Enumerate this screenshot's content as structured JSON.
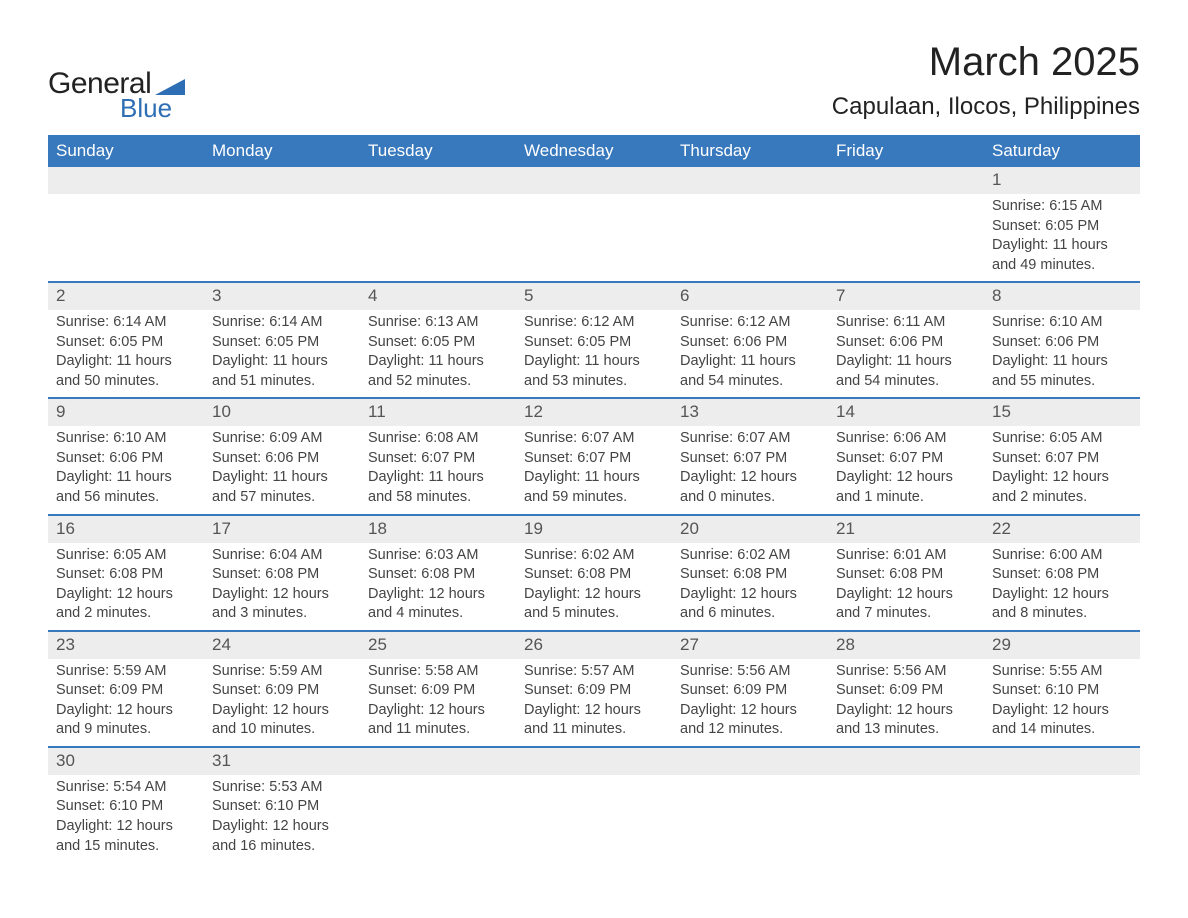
{
  "logo": {
    "text1": "General",
    "text2": "Blue",
    "flag_color": "#2e6eb5"
  },
  "title": "March 2025",
  "location": "Capulaan, Ilocos, Philippines",
  "colors": {
    "header_bg": "#3878bd",
    "header_text": "#ffffff",
    "daynum_bg": "#ededed",
    "row_border": "#3878bd",
    "body_text": "#444444",
    "page_bg": "#ffffff"
  },
  "typography": {
    "month_title_pt": 40,
    "location_pt": 24,
    "weekday_pt": 17,
    "daynum_pt": 17,
    "body_pt": 14.5
  },
  "layout": {
    "columns": 7,
    "rows": 6,
    "first_day_column": 6
  },
  "weekdays": [
    "Sunday",
    "Monday",
    "Tuesday",
    "Wednesday",
    "Thursday",
    "Friday",
    "Saturday"
  ],
  "days": [
    {
      "n": 1,
      "sunrise": "6:15 AM",
      "sunset": "6:05 PM",
      "daylight": "11 hours and 49 minutes."
    },
    {
      "n": 2,
      "sunrise": "6:14 AM",
      "sunset": "6:05 PM",
      "daylight": "11 hours and 50 minutes."
    },
    {
      "n": 3,
      "sunrise": "6:14 AM",
      "sunset": "6:05 PM",
      "daylight": "11 hours and 51 minutes."
    },
    {
      "n": 4,
      "sunrise": "6:13 AM",
      "sunset": "6:05 PM",
      "daylight": "11 hours and 52 minutes."
    },
    {
      "n": 5,
      "sunrise": "6:12 AM",
      "sunset": "6:05 PM",
      "daylight": "11 hours and 53 minutes."
    },
    {
      "n": 6,
      "sunrise": "6:12 AM",
      "sunset": "6:06 PM",
      "daylight": "11 hours and 54 minutes."
    },
    {
      "n": 7,
      "sunrise": "6:11 AM",
      "sunset": "6:06 PM",
      "daylight": "11 hours and 54 minutes."
    },
    {
      "n": 8,
      "sunrise": "6:10 AM",
      "sunset": "6:06 PM",
      "daylight": "11 hours and 55 minutes."
    },
    {
      "n": 9,
      "sunrise": "6:10 AM",
      "sunset": "6:06 PM",
      "daylight": "11 hours and 56 minutes."
    },
    {
      "n": 10,
      "sunrise": "6:09 AM",
      "sunset": "6:06 PM",
      "daylight": "11 hours and 57 minutes."
    },
    {
      "n": 11,
      "sunrise": "6:08 AM",
      "sunset": "6:07 PM",
      "daylight": "11 hours and 58 minutes."
    },
    {
      "n": 12,
      "sunrise": "6:07 AM",
      "sunset": "6:07 PM",
      "daylight": "11 hours and 59 minutes."
    },
    {
      "n": 13,
      "sunrise": "6:07 AM",
      "sunset": "6:07 PM",
      "daylight": "12 hours and 0 minutes."
    },
    {
      "n": 14,
      "sunrise": "6:06 AM",
      "sunset": "6:07 PM",
      "daylight": "12 hours and 1 minute."
    },
    {
      "n": 15,
      "sunrise": "6:05 AM",
      "sunset": "6:07 PM",
      "daylight": "12 hours and 2 minutes."
    },
    {
      "n": 16,
      "sunrise": "6:05 AM",
      "sunset": "6:08 PM",
      "daylight": "12 hours and 2 minutes."
    },
    {
      "n": 17,
      "sunrise": "6:04 AM",
      "sunset": "6:08 PM",
      "daylight": "12 hours and 3 minutes."
    },
    {
      "n": 18,
      "sunrise": "6:03 AM",
      "sunset": "6:08 PM",
      "daylight": "12 hours and 4 minutes."
    },
    {
      "n": 19,
      "sunrise": "6:02 AM",
      "sunset": "6:08 PM",
      "daylight": "12 hours and 5 minutes."
    },
    {
      "n": 20,
      "sunrise": "6:02 AM",
      "sunset": "6:08 PM",
      "daylight": "12 hours and 6 minutes."
    },
    {
      "n": 21,
      "sunrise": "6:01 AM",
      "sunset": "6:08 PM",
      "daylight": "12 hours and 7 minutes."
    },
    {
      "n": 22,
      "sunrise": "6:00 AM",
      "sunset": "6:08 PM",
      "daylight": "12 hours and 8 minutes."
    },
    {
      "n": 23,
      "sunrise": "5:59 AM",
      "sunset": "6:09 PM",
      "daylight": "12 hours and 9 minutes."
    },
    {
      "n": 24,
      "sunrise": "5:59 AM",
      "sunset": "6:09 PM",
      "daylight": "12 hours and 10 minutes."
    },
    {
      "n": 25,
      "sunrise": "5:58 AM",
      "sunset": "6:09 PM",
      "daylight": "12 hours and 11 minutes."
    },
    {
      "n": 26,
      "sunrise": "5:57 AM",
      "sunset": "6:09 PM",
      "daylight": "12 hours and 11 minutes."
    },
    {
      "n": 27,
      "sunrise": "5:56 AM",
      "sunset": "6:09 PM",
      "daylight": "12 hours and 12 minutes."
    },
    {
      "n": 28,
      "sunrise": "5:56 AM",
      "sunset": "6:09 PM",
      "daylight": "12 hours and 13 minutes."
    },
    {
      "n": 29,
      "sunrise": "5:55 AM",
      "sunset": "6:10 PM",
      "daylight": "12 hours and 14 minutes."
    },
    {
      "n": 30,
      "sunrise": "5:54 AM",
      "sunset": "6:10 PM",
      "daylight": "12 hours and 15 minutes."
    },
    {
      "n": 31,
      "sunrise": "5:53 AM",
      "sunset": "6:10 PM",
      "daylight": "12 hours and 16 minutes."
    }
  ],
  "labels": {
    "sunrise": "Sunrise: ",
    "sunset": "Sunset: ",
    "daylight": "Daylight: "
  }
}
